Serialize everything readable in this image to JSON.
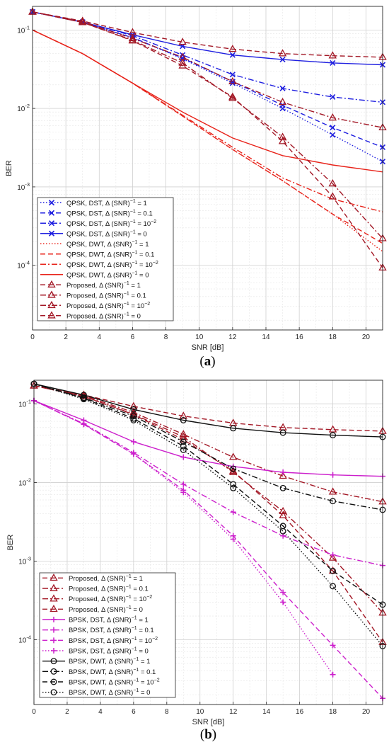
{
  "chart_data": [
    {
      "type": "line",
      "caption": "a",
      "xlabel": "SNR [dB]",
      "ylabel": "BER",
      "xlim": [
        0,
        21
      ],
      "ylim": [
        1.5e-05,
        0.2
      ],
      "yscale": "log",
      "grid": true,
      "legend_position": "bottom-left",
      "xticks": [
        "0",
        "2",
        "4",
        "6",
        "8",
        "10",
        "12",
        "14",
        "16",
        "18",
        "20"
      ],
      "series": [
        {
          "name": "QPSK, DST, Δ (SNR)⁻¹ = 1",
          "color": "#1f1fe0",
          "dash": "dot",
          "marker": "x",
          "x": [
            0,
            3,
            6,
            9,
            12,
            15,
            18,
            21
          ],
          "y": [
            0.17,
            0.125,
            0.08,
            0.043,
            0.021,
            0.01,
            0.0046,
            0.0021
          ]
        },
        {
          "name": "QPSK, DST, Δ (SNR)⁻¹ = 0.1",
          "color": "#1f1fe0",
          "dash": "dash",
          "marker": "x",
          "x": [
            0,
            3,
            6,
            9,
            12,
            15,
            18,
            21
          ],
          "y": [
            0.17,
            0.125,
            0.08,
            0.044,
            0.022,
            0.011,
            0.0057,
            0.0032
          ]
        },
        {
          "name": "QPSK, DST, Δ (SNR)⁻¹ = 10⁻²",
          "color": "#1f1fe0",
          "dash": "dashdot",
          "marker": "x",
          "x": [
            0,
            3,
            6,
            9,
            12,
            15,
            18,
            21
          ],
          "y": [
            0.17,
            0.126,
            0.085,
            0.048,
            0.027,
            0.018,
            0.014,
            0.012
          ]
        },
        {
          "name": "QPSK, DST, Δ (SNR)⁻¹ = 0",
          "color": "#1f1fe0",
          "dash": "solid",
          "marker": "x",
          "x": [
            0,
            3,
            6,
            9,
            12,
            15,
            18,
            21
          ],
          "y": [
            0.17,
            0.126,
            0.087,
            0.062,
            0.048,
            0.042,
            0.038,
            0.036
          ]
        },
        {
          "name": "QPSK, DWT, Δ (SNR)⁻¹ = 1",
          "color": "#e8231a",
          "dash": "dot",
          "marker": "none",
          "x": [
            0,
            3,
            6,
            9,
            12,
            15,
            18,
            21
          ],
          "y": [
            0.1,
            0.05,
            0.021,
            0.008,
            0.003,
            0.0012,
            0.00045,
            0.00015
          ]
        },
        {
          "name": "QPSK, DWT, Δ (SNR)⁻¹ = 0.1",
          "color": "#e8231a",
          "dash": "dash",
          "marker": "none",
          "x": [
            0,
            3,
            6,
            9,
            12,
            15,
            18,
            21
          ],
          "y": [
            0.1,
            0.05,
            0.021,
            0.008,
            0.003,
            0.0012,
            0.00045,
            0.00019
          ]
        },
        {
          "name": "QPSK, DWT, Δ (SNR)⁻¹ = 10⁻²",
          "color": "#e8231a",
          "dash": "dashdot",
          "marker": "none",
          "x": [
            0,
            3,
            6,
            9,
            12,
            15,
            18,
            21
          ],
          "y": [
            0.1,
            0.05,
            0.021,
            0.0082,
            0.0032,
            0.0013,
            0.0007,
            0.00048
          ]
        },
        {
          "name": "QPSK, DWT, Δ (SNR)⁻¹ = 0",
          "color": "#e8231a",
          "dash": "solid",
          "marker": "none",
          "x": [
            0,
            3,
            6,
            9,
            12,
            15,
            18,
            21
          ],
          "y": [
            0.1,
            0.05,
            0.021,
            0.009,
            0.0042,
            0.0025,
            0.0019,
            0.00155
          ]
        },
        {
          "name": "Proposed, Δ (SNR)⁻¹ = 1",
          "color": "#a31826",
          "dash": "dash",
          "marker": "triangle",
          "x": [
            0,
            3,
            6,
            9,
            12,
            15,
            18,
            21
          ],
          "y": [
            0.17,
            0.125,
            0.073,
            0.035,
            0.014,
            0.0038,
            0.00075,
            9.3e-05
          ]
        },
        {
          "name": "Proposed, Δ (SNR)⁻¹ = 0.1",
          "color": "#a31826",
          "dash": "dashdot",
          "marker": "triangle",
          "x": [
            0,
            3,
            6,
            9,
            12,
            15,
            18,
            21
          ],
          "y": [
            0.17,
            0.125,
            0.074,
            0.038,
            0.0135,
            0.0043,
            0.0011,
            0.00022
          ]
        },
        {
          "name": "Proposed, Δ (SNR)⁻¹ = 10⁻²",
          "color": "#a31826",
          "dash": "dashdot",
          "marker": "triangle",
          "x": [
            0,
            3,
            6,
            9,
            12,
            15,
            18,
            21
          ],
          "y": [
            0.17,
            0.128,
            0.078,
            0.045,
            0.022,
            0.012,
            0.0076,
            0.0057
          ]
        },
        {
          "name": "Proposed, Δ (SNR)⁻¹ = 0",
          "color": "#a31826",
          "dash": "dash",
          "marker": "triangle",
          "x": [
            0,
            3,
            6,
            9,
            12,
            15,
            18,
            21
          ],
          "y": [
            0.17,
            0.13,
            0.093,
            0.07,
            0.057,
            0.05,
            0.047,
            0.045
          ]
        }
      ]
    },
    {
      "type": "line",
      "caption": "b",
      "xlabel": "SNR [dB]",
      "ylabel": "BER",
      "xlim": [
        0,
        21
      ],
      "ylim": [
        1.5e-05,
        0.2
      ],
      "yscale": "log",
      "grid": true,
      "legend_position": "bottom-left",
      "xticks": [
        "0",
        "2",
        "4",
        "6",
        "8",
        "10",
        "12",
        "14",
        "16",
        "18",
        "20"
      ],
      "series": [
        {
          "name": "Proposed, Δ (SNR)⁻¹ = 1",
          "color": "#a31826",
          "dash": "dash",
          "marker": "triangle",
          "x": [
            0,
            3,
            6,
            9,
            12,
            15,
            18,
            21
          ],
          "y": [
            0.17,
            0.125,
            0.073,
            0.035,
            0.014,
            0.0038,
            0.00075,
            9.3e-05
          ]
        },
        {
          "name": "Proposed, Δ (SNR)⁻¹ = 0.1",
          "color": "#a31826",
          "dash": "dashdot",
          "marker": "triangle",
          "x": [
            0,
            3,
            6,
            9,
            12,
            15,
            18,
            21
          ],
          "y": [
            0.17,
            0.125,
            0.074,
            0.038,
            0.0135,
            0.0043,
            0.0011,
            0.00022
          ]
        },
        {
          "name": "Proposed, Δ (SNR)⁻¹ = 10⁻²",
          "color": "#a31826",
          "dash": "dashdot",
          "marker": "triangle",
          "x": [
            0,
            3,
            6,
            9,
            12,
            15,
            18,
            21
          ],
          "y": [
            0.17,
            0.128,
            0.078,
            0.041,
            0.021,
            0.0121,
            0.0076,
            0.0057
          ]
        },
        {
          "name": "Proposed, Δ (SNR)⁻¹ = 0",
          "color": "#a31826",
          "dash": "dash",
          "marker": "triangle",
          "x": [
            0,
            3,
            6,
            9,
            12,
            15,
            18,
            21
          ],
          "y": [
            0.17,
            0.13,
            0.093,
            0.07,
            0.057,
            0.05,
            0.047,
            0.045
          ]
        },
        {
          "name": "BPSK, DST, Δ (SNR)⁻¹ = 1",
          "color": "#cc1fcc",
          "dash": "solid",
          "marker": "plus",
          "x": [
            0,
            3,
            6,
            9,
            12,
            15,
            18,
            21
          ],
          "y": [
            0.11,
            0.062,
            0.033,
            0.021,
            0.016,
            0.0135,
            0.0125,
            0.012
          ]
        },
        {
          "name": "BPSK, DST, Δ (SNR)⁻¹ = 0.1",
          "color": "#cc1fcc",
          "dash": "dashdot",
          "marker": "plus",
          "x": [
            0,
            3,
            6,
            9,
            12,
            15,
            18,
            21
          ],
          "y": [
            0.11,
            0.056,
            0.024,
            0.0095,
            0.0042,
            0.0021,
            0.0012,
            0.00088
          ]
        },
        {
          "name": "BPSK, DST, Δ (SNR)⁻¹ = 10⁻²",
          "color": "#cc1fcc",
          "dash": "dash",
          "marker": "plus",
          "x": [
            0,
            3,
            6,
            9,
            12,
            15,
            18,
            21
          ],
          "y": [
            0.11,
            0.055,
            0.023,
            0.008,
            0.0021,
            0.0004,
            8.5e-05,
            1.8e-05
          ]
        },
        {
          "name": "BPSK, DST, Δ (SNR)⁻¹ = 0",
          "color": "#cc1fcc",
          "dash": "dot",
          "marker": "plus",
          "x": [
            0,
            3,
            6,
            9,
            12,
            15,
            18
          ],
          "y": [
            0.11,
            0.055,
            0.023,
            0.0075,
            0.0019,
            0.0003,
            3.6e-05
          ]
        },
        {
          "name": "BPSK, DWT, Δ (SNR)⁻¹ = 1",
          "color": "#111111",
          "dash": "solid",
          "marker": "circle",
          "x": [
            0,
            3,
            6,
            9,
            12,
            15,
            18,
            21
          ],
          "y": [
            0.18,
            0.13,
            0.085,
            0.062,
            0.049,
            0.043,
            0.04,
            0.038
          ]
        },
        {
          "name": "BPSK, DWT, Δ (SNR)⁻¹ = 0.1",
          "color": "#111111",
          "dash": "dashdot",
          "marker": "circle",
          "x": [
            0,
            3,
            6,
            9,
            12,
            15,
            18,
            21
          ],
          "y": [
            0.18,
            0.12,
            0.07,
            0.033,
            0.015,
            0.0085,
            0.0058,
            0.0045
          ]
        },
        {
          "name": "BPSK, DWT, Δ (SNR)⁻¹ = 10⁻²",
          "color": "#111111",
          "dash": "dash",
          "marker": "circle",
          "x": [
            0,
            3,
            6,
            9,
            12,
            15,
            18,
            21
          ],
          "y": [
            0.18,
            0.118,
            0.065,
            0.029,
            0.0095,
            0.0028,
            0.00075,
            0.00028
          ]
        },
        {
          "name": "BPSK, DWT, Δ (SNR)⁻¹ = 0",
          "color": "#111111",
          "dash": "dot",
          "marker": "circle",
          "x": [
            0,
            3,
            6,
            9,
            12,
            15,
            18,
            21
          ],
          "y": [
            0.18,
            0.115,
            0.062,
            0.026,
            0.0085,
            0.0024,
            0.00048,
            8.3e-05
          ]
        }
      ]
    }
  ]
}
